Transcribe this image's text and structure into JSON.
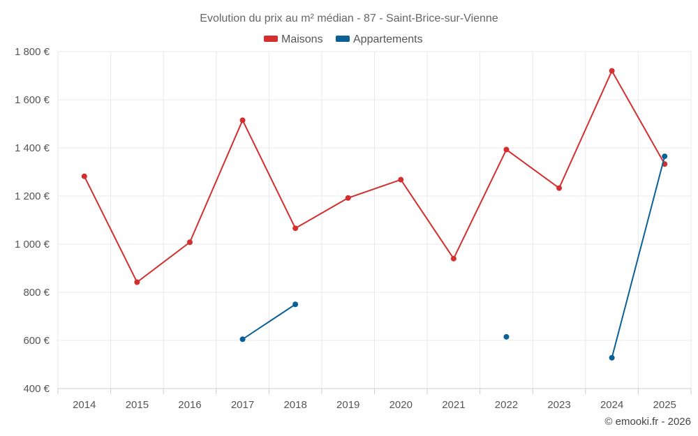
{
  "chart_data": {
    "type": "line",
    "title": "Evolution du prix au m² médian - 87 - Saint-Brice-sur-Vienne",
    "categories": [
      "2014",
      "2015",
      "2016",
      "2017",
      "2018",
      "2019",
      "2020",
      "2021",
      "2022",
      "2023",
      "2024",
      "2025"
    ],
    "ylim": [
      400,
      1800
    ],
    "yticks": [
      400,
      600,
      800,
      1000,
      1200,
      1400,
      1600,
      1800
    ],
    "ytick_labels": [
      "400 €",
      "600 €",
      "800 €",
      "1 000 €",
      "1 200 €",
      "1 400 €",
      "1 600 €",
      "1 800 €"
    ],
    "grid": true,
    "legend_position": "top-center",
    "series": [
      {
        "name": "Maisons",
        "color": "#d32f2f",
        "values": [
          1282,
          842,
          1008,
          1515,
          1066,
          1192,
          1268,
          940,
          1393,
          1233,
          1720,
          1333
        ]
      },
      {
        "name": "Appartements",
        "color": "#0b6196",
        "values": [
          null,
          null,
          null,
          605,
          750,
          null,
          null,
          null,
          615,
          null,
          528,
          1365
        ]
      }
    ]
  },
  "credit": "© emooki.fr - 2026"
}
